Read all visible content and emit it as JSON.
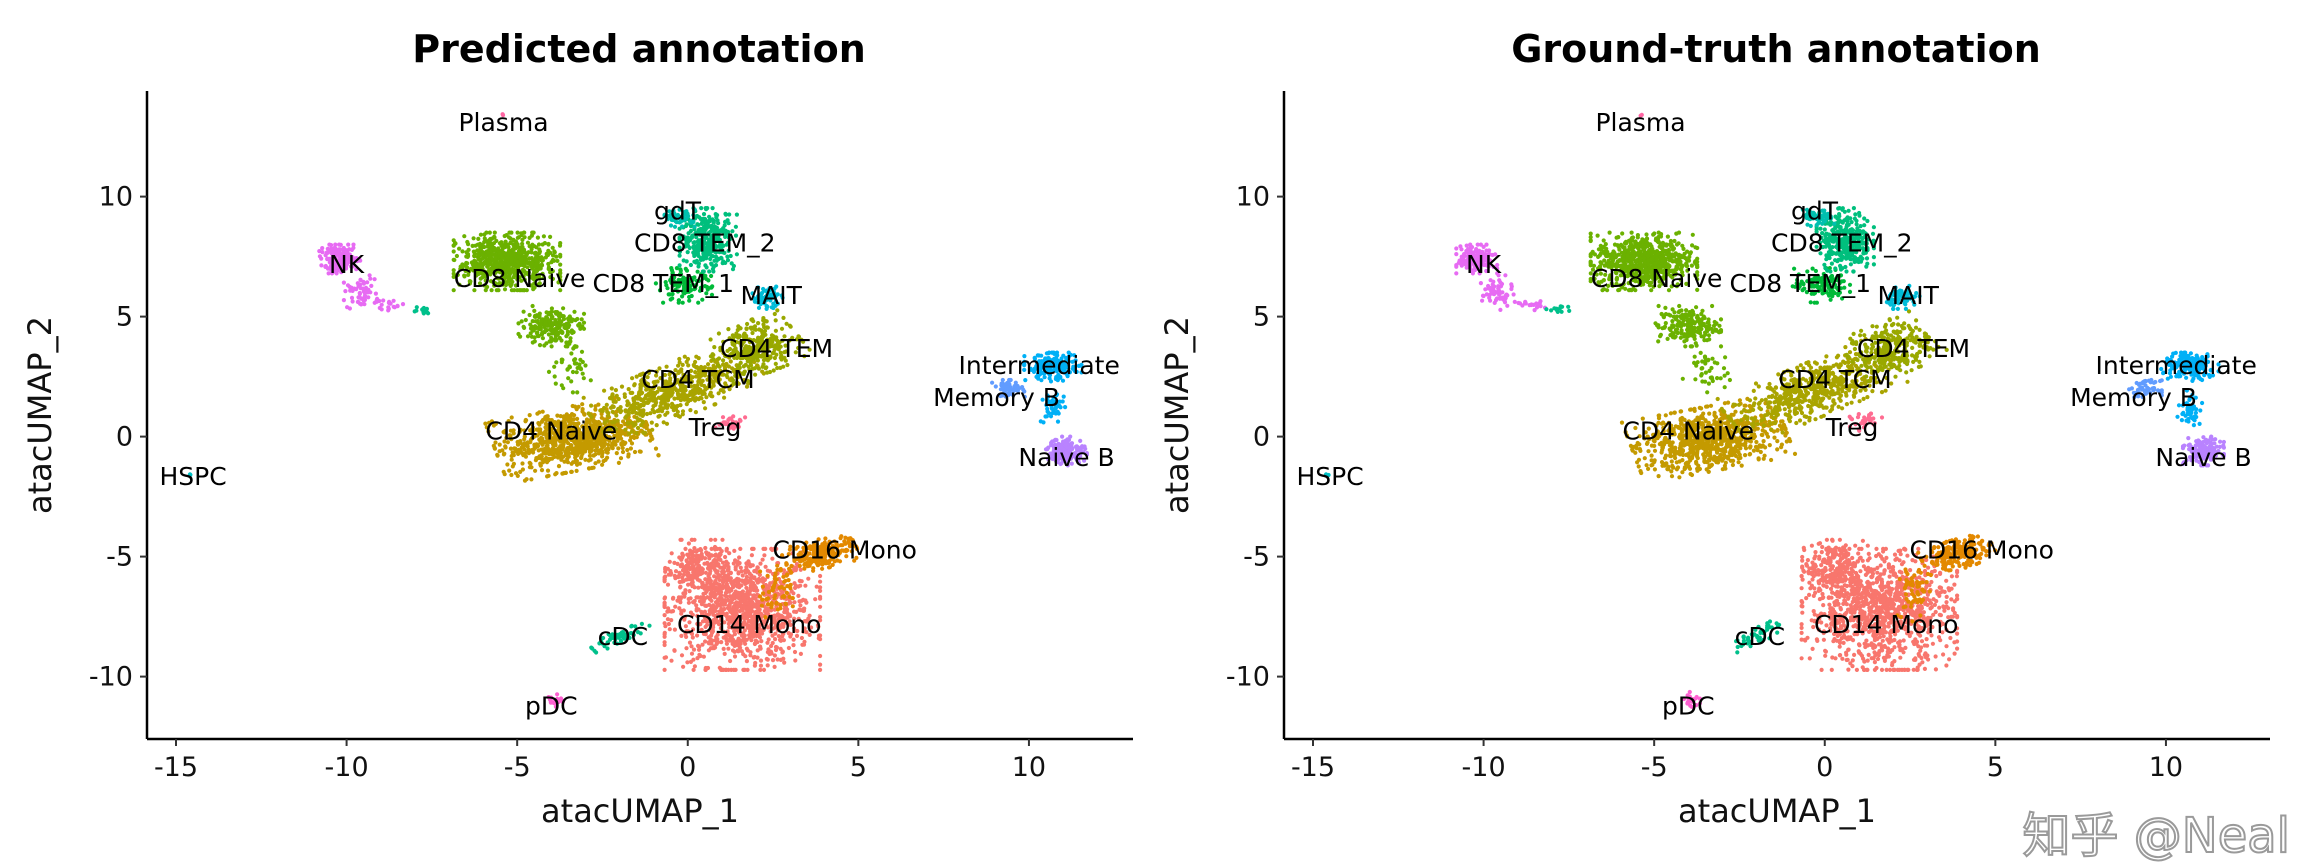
{
  "chart_data": [
    {
      "type": "scatter",
      "title": "Predicted annotation",
      "xlabel": "atacUMAP_1",
      "ylabel": "atacUMAP_2",
      "xlim": [
        -15.85,
        13.05
      ],
      "ylim": [
        -12.6,
        14.4
      ],
      "xticks": [
        -15,
        -10,
        -5,
        0,
        5,
        10
      ],
      "yticks": [
        -10,
        -5,
        0,
        5,
        10
      ],
      "grid": false,
      "legend": "none"
    },
    {
      "type": "scatter",
      "title": "Ground-truth annotation",
      "xlabel": "atacUMAP_1",
      "ylabel": "atacUMAP_2",
      "xlim": [
        -15.85,
        13.05
      ],
      "ylim": [
        -12.6,
        14.4
      ],
      "xticks": [
        -15,
        -10,
        -5,
        0,
        5,
        10
      ],
      "yticks": [
        -10,
        -5,
        0,
        5,
        10
      ],
      "grid": false,
      "legend": "none"
    }
  ],
  "clusters": [
    {
      "name": "CD14 Mono",
      "color": "#F8766D",
      "label": [
        1.8,
        -7.8
      ],
      "blobs": [
        [
          1.6,
          -7.2,
          1.9,
          2.1,
          0,
          1100
        ],
        [
          0.3,
          -5.5,
          0.8,
          1.0,
          0,
          200
        ]
      ]
    },
    {
      "name": "CD16 Mono",
      "color": "#E38900",
      "label": [
        4.6,
        -4.7
      ],
      "blobs": [
        [
          3.9,
          -4.9,
          0.9,
          0.5,
          20,
          220
        ],
        [
          2.6,
          -6.5,
          0.4,
          1.0,
          0,
          60
        ]
      ]
    },
    {
      "name": "CD4 Naive",
      "color": "#C49A00",
      "label": [
        -4.0,
        0.25
      ],
      "blobs": [
        [
          -3.4,
          -0.1,
          1.9,
          1.1,
          15,
          800
        ]
      ]
    },
    {
      "name": "CD4 TCM",
      "color": "#A9A400",
      "label": [
        0.3,
        2.4
      ],
      "blobs": [
        [
          -0.4,
          1.9,
          2.2,
          0.9,
          30,
          550
        ]
      ]
    },
    {
      "name": "CD4 TEM",
      "color": "#99A800",
      "label": [
        2.6,
        3.7
      ],
      "blobs": [
        [
          2.0,
          3.7,
          1.1,
          0.9,
          30,
          300
        ]
      ]
    },
    {
      "name": "CD8 Naive",
      "color": "#6BB100",
      "label": [
        -4.6,
        6.6
      ],
      "blobs": [
        [
          -5.3,
          7.3,
          1.3,
          1.0,
          0,
          650
        ],
        [
          -4.0,
          4.6,
          0.8,
          0.7,
          0,
          200
        ],
        [
          -3.5,
          2.8,
          0.6,
          0.8,
          0,
          40
        ]
      ]
    },
    {
      "name": "CD8 TEM_1",
      "color": "#00BA38",
      "label": [
        -0.8,
        6.4
      ],
      "blobs": [
        [
          -0.1,
          6.3,
          0.7,
          0.6,
          0,
          120
        ]
      ]
    },
    {
      "name": "CD8 TEM_2",
      "color": "#00BF7D",
      "label": [
        0.5,
        8.6
      ],
      "blobs": [
        [
          0.6,
          8.2,
          0.7,
          1.1,
          0,
          330
        ]
      ]
    },
    {
      "name": "gdT",
      "color": "#00C0AF",
      "label": [
        -0.3,
        8.9
      ],
      "blobs": [
        [
          -0.2,
          9.1,
          0.4,
          0.3,
          0,
          50
        ]
      ]
    },
    {
      "name": "MAIT",
      "color": "#00BCD8",
      "label": [
        2.2,
        5.9
      ],
      "blobs": [
        [
          2.3,
          5.8,
          0.4,
          0.4,
          0,
          70
        ]
      ]
    },
    {
      "name": "Intermediate",
      "color": "#00B0F6",
      "label": [
        10.3,
        2.8
      ],
      "blobs": [
        [
          10.7,
          2.9,
          0.7,
          0.5,
          0,
          180
        ],
        [
          10.7,
          1.2,
          0.3,
          0.6,
          0,
          50
        ]
      ]
    },
    {
      "name": "Memory B",
      "color": "#619CFF",
      "label": [
        9.05,
        1.85
      ],
      "blobs": [
        [
          9.4,
          2.0,
          0.4,
          0.3,
          0,
          50
        ]
      ]
    },
    {
      "name": "Naive B",
      "color": "#B983FF",
      "label": [
        11.1,
        -0.85
      ],
      "blobs": [
        [
          11.1,
          -0.6,
          0.5,
          0.5,
          0,
          150
        ]
      ]
    },
    {
      "name": "NK",
      "color": "#E76BF3",
      "label": [
        -10.0,
        7.2
      ],
      "blobs": [
        [
          -10.2,
          7.4,
          0.5,
          0.5,
          0,
          170
        ],
        [
          -9.6,
          6.0,
          0.4,
          0.6,
          0,
          60
        ],
        [
          -8.8,
          5.5,
          0.5,
          0.2,
          0,
          20
        ]
      ]
    },
    {
      "name": "cDC",
      "color": "#00C08B",
      "label": [
        -1.9,
        -8.3
      ],
      "blobs": [
        [
          -2.0,
          -8.3,
          0.8,
          0.25,
          35,
          50
        ],
        [
          -7.8,
          5.3,
          0.3,
          0.15,
          0,
          12
        ]
      ]
    },
    {
      "name": "pDC",
      "color": "#FD61D1",
      "label": [
        -4.0,
        -11.2
      ],
      "blobs": [
        [
          -3.9,
          -11.0,
          0.2,
          0.3,
          0,
          20
        ]
      ]
    },
    {
      "name": "Treg",
      "color": "#FF6C91",
      "label": [
        0.8,
        0.4
      ],
      "blobs": [
        [
          1.2,
          0.6,
          0.4,
          0.3,
          0,
          30
        ]
      ]
    },
    {
      "name": "Plasma",
      "color": "#FF67A4",
      "label": [
        -5.4,
        13.1
      ],
      "blobs": [
        [
          -5.4,
          13.4,
          0.05,
          0.05,
          0,
          2
        ]
      ]
    },
    {
      "name": "HSPC",
      "color": "#00BFC4",
      "label": [
        -14.5,
        -1.65
      ],
      "blobs": [
        [
          -14.6,
          -1.6,
          0.05,
          0.05,
          0,
          2
        ]
      ]
    }
  ],
  "watermark": "知乎 @Neal"
}
